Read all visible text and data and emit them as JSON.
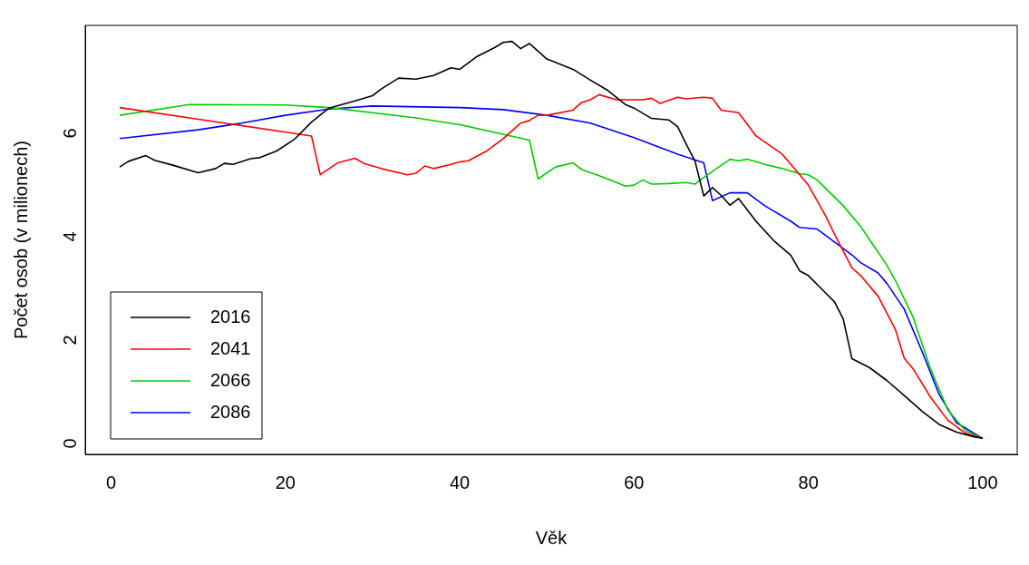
{
  "chart_data": {
    "type": "line",
    "xlabel": "Věk",
    "ylabel": "Počet osob (v milionech)",
    "xlim": [
      -2.96,
      103.96
    ],
    "ylim": [
      -0.31,
      7.99
    ],
    "xticks": [
      0,
      20,
      40,
      60,
      80,
      100
    ],
    "yticks": [
      0,
      2,
      4,
      6
    ],
    "grid": false,
    "legend": "bottom left",
    "marker": "none",
    "line_style": "solid",
    "series": [
      {
        "name": "2016",
        "color": "#000000",
        "x": [
          1,
          2,
          4,
          5,
          7,
          10,
          12,
          13,
          14,
          16,
          17,
          19,
          21,
          23,
          25,
          28,
          30,
          31,
          33,
          35,
          37,
          39,
          40,
          42,
          44,
          45,
          46,
          47,
          48,
          50,
          53,
          55,
          57,
          59,
          60,
          62,
          64,
          65,
          66,
          67,
          68,
          69,
          70,
          71,
          72,
          74,
          76,
          78,
          79,
          80,
          82,
          83,
          84,
          85,
          87,
          89,
          91,
          93,
          95,
          97,
          99,
          100
        ],
        "values": [
          5.25,
          5.36,
          5.47,
          5.38,
          5.29,
          5.14,
          5.22,
          5.32,
          5.3,
          5.41,
          5.43,
          5.56,
          5.78,
          6.12,
          6.39,
          6.53,
          6.63,
          6.76,
          6.97,
          6.95,
          7.02,
          7.17,
          7.14,
          7.39,
          7.56,
          7.66,
          7.68,
          7.54,
          7.64,
          7.34,
          7.14,
          6.93,
          6.73,
          6.46,
          6.39,
          6.19,
          6.16,
          6.03,
          5.69,
          5.36,
          4.69,
          4.85,
          4.7,
          4.51,
          4.64,
          4.2,
          3.83,
          3.54,
          3.24,
          3.15,
          2.81,
          2.64,
          2.31,
          1.54,
          1.37,
          1.12,
          0.83,
          0.53,
          0.27,
          0.12,
          0.03,
          0
        ]
      },
      {
        "name": "2041",
        "color": "#ff0000",
        "x": [
          1,
          23,
          24,
          26,
          28,
          29,
          31,
          34,
          35,
          36,
          37,
          39,
          40,
          41,
          43,
          45,
          47,
          48,
          49,
          50,
          53,
          54,
          55,
          56,
          58,
          61,
          62,
          63,
          65,
          66,
          68,
          69,
          70,
          72,
          74,
          77,
          80,
          82,
          83,
          85,
          86,
          88,
          90,
          91,
          92,
          94,
          96,
          98,
          100
        ],
        "values": [
          6.4,
          5.85,
          5.1,
          5.33,
          5.42,
          5.32,
          5.22,
          5.1,
          5.13,
          5.27,
          5.22,
          5.3,
          5.35,
          5.37,
          5.55,
          5.8,
          6.1,
          6.15,
          6.25,
          6.25,
          6.35,
          6.5,
          6.55,
          6.65,
          6.55,
          6.55,
          6.58,
          6.48,
          6.6,
          6.57,
          6.6,
          6.58,
          6.35,
          6.3,
          5.85,
          5.5,
          4.9,
          4.3,
          3.95,
          3.3,
          3.15,
          2.75,
          2.1,
          1.55,
          1.35,
          0.8,
          0.35,
          0.1,
          0
        ]
      },
      {
        "name": "2066",
        "color": "#00cd00",
        "x": [
          1,
          9,
          20,
          25,
          35,
          40,
          48,
          49,
          51,
          53,
          54,
          56,
          58,
          59,
          60,
          61,
          62,
          64,
          66,
          67,
          68,
          70,
          71,
          72,
          73,
          75,
          77,
          79,
          80,
          81,
          84,
          86,
          87,
          89,
          90,
          92,
          94,
          96,
          98,
          100
        ],
        "values": [
          6.25,
          6.46,
          6.45,
          6.4,
          6.2,
          6.07,
          5.77,
          5.02,
          5.25,
          5.33,
          5.2,
          5.08,
          4.95,
          4.88,
          4.9,
          5.0,
          4.92,
          4.93,
          4.95,
          4.92,
          5.05,
          5.28,
          5.4,
          5.37,
          5.4,
          5.3,
          5.22,
          5.12,
          5.1,
          5.0,
          4.5,
          4.1,
          3.85,
          3.35,
          3.05,
          2.35,
          1.35,
          0.55,
          0.15,
          0
        ]
      },
      {
        "name": "2086",
        "color": "#0000ff",
        "x": [
          1,
          10,
          15,
          20,
          25,
          30,
          40,
          45,
          50,
          55,
          60,
          65,
          68,
          69,
          71,
          73,
          75,
          78,
          79,
          81,
          83,
          85,
          86,
          88,
          89,
          91,
          93,
          95,
          97,
          100
        ],
        "values": [
          5.8,
          5.97,
          6.1,
          6.25,
          6.37,
          6.43,
          6.4,
          6.36,
          6.25,
          6.1,
          5.82,
          5.5,
          5.33,
          4.6,
          4.75,
          4.75,
          4.5,
          4.2,
          4.08,
          4.05,
          3.8,
          3.55,
          3.4,
          3.2,
          3.0,
          2.5,
          1.7,
          0.85,
          0.3,
          0
        ]
      }
    ]
  }
}
